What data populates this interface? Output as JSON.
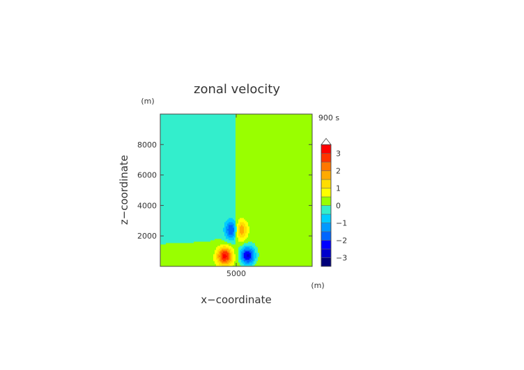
{
  "chart_data": {
    "type": "heatmap",
    "title": "zonal velocity",
    "xlabel": "x−coordinate",
    "ylabel": "z−coordinate",
    "x_unit": "(m)",
    "z_unit": "(m)",
    "time_label": "900 s",
    "xlim": [
      0,
      10000
    ],
    "zlim": [
      0,
      10000
    ],
    "x_ticks": [
      {
        "value": 5000,
        "label": "5000"
      }
    ],
    "z_ticks": [
      {
        "value": 2000,
        "label": "2000"
      },
      {
        "value": 4000,
        "label": "4000"
      },
      {
        "value": 6000,
        "label": "6000"
      },
      {
        "value": 8000,
        "label": "8000"
      }
    ],
    "colorbar": {
      "min": -3.5,
      "max": 3.5,
      "step": 0.5,
      "tick_labels": [
        {
          "value": 3,
          "label": "3"
        },
        {
          "value": 2,
          "label": "2"
        },
        {
          "value": 1,
          "label": "1"
        },
        {
          "value": 0,
          "label": "0"
        },
        {
          "value": -1,
          "label": "−1"
        },
        {
          "value": -2,
          "label": "−2"
        },
        {
          "value": -3,
          "label": "−3"
        }
      ],
      "colors": [
        "#00007a",
        "#0000cc",
        "#0000ff",
        "#0066ff",
        "#0099ff",
        "#00ccff",
        "#33eecc",
        "#99ff00",
        "#ffff00",
        "#ffdd00",
        "#ffaa00",
        "#ff7700",
        "#ff3300",
        "#ff0000",
        "#ff9999"
      ]
    },
    "background": {
      "left_value": 0.0,
      "right_value": 0.2
    },
    "features": [
      {
        "x": 4750,
        "z": 2400,
        "value": -2.4,
        "sx": 450,
        "sz": 650
      },
      {
        "x": 5250,
        "z": 2400,
        "value": 2.2,
        "sx": 450,
        "sz": 650
      },
      {
        "x": 4250,
        "z": 700,
        "value": 3.0,
        "sx": 500,
        "sz": 600
      },
      {
        "x": 5750,
        "z": 700,
        "value": -3.0,
        "sx": 500,
        "sz": 600
      }
    ]
  }
}
